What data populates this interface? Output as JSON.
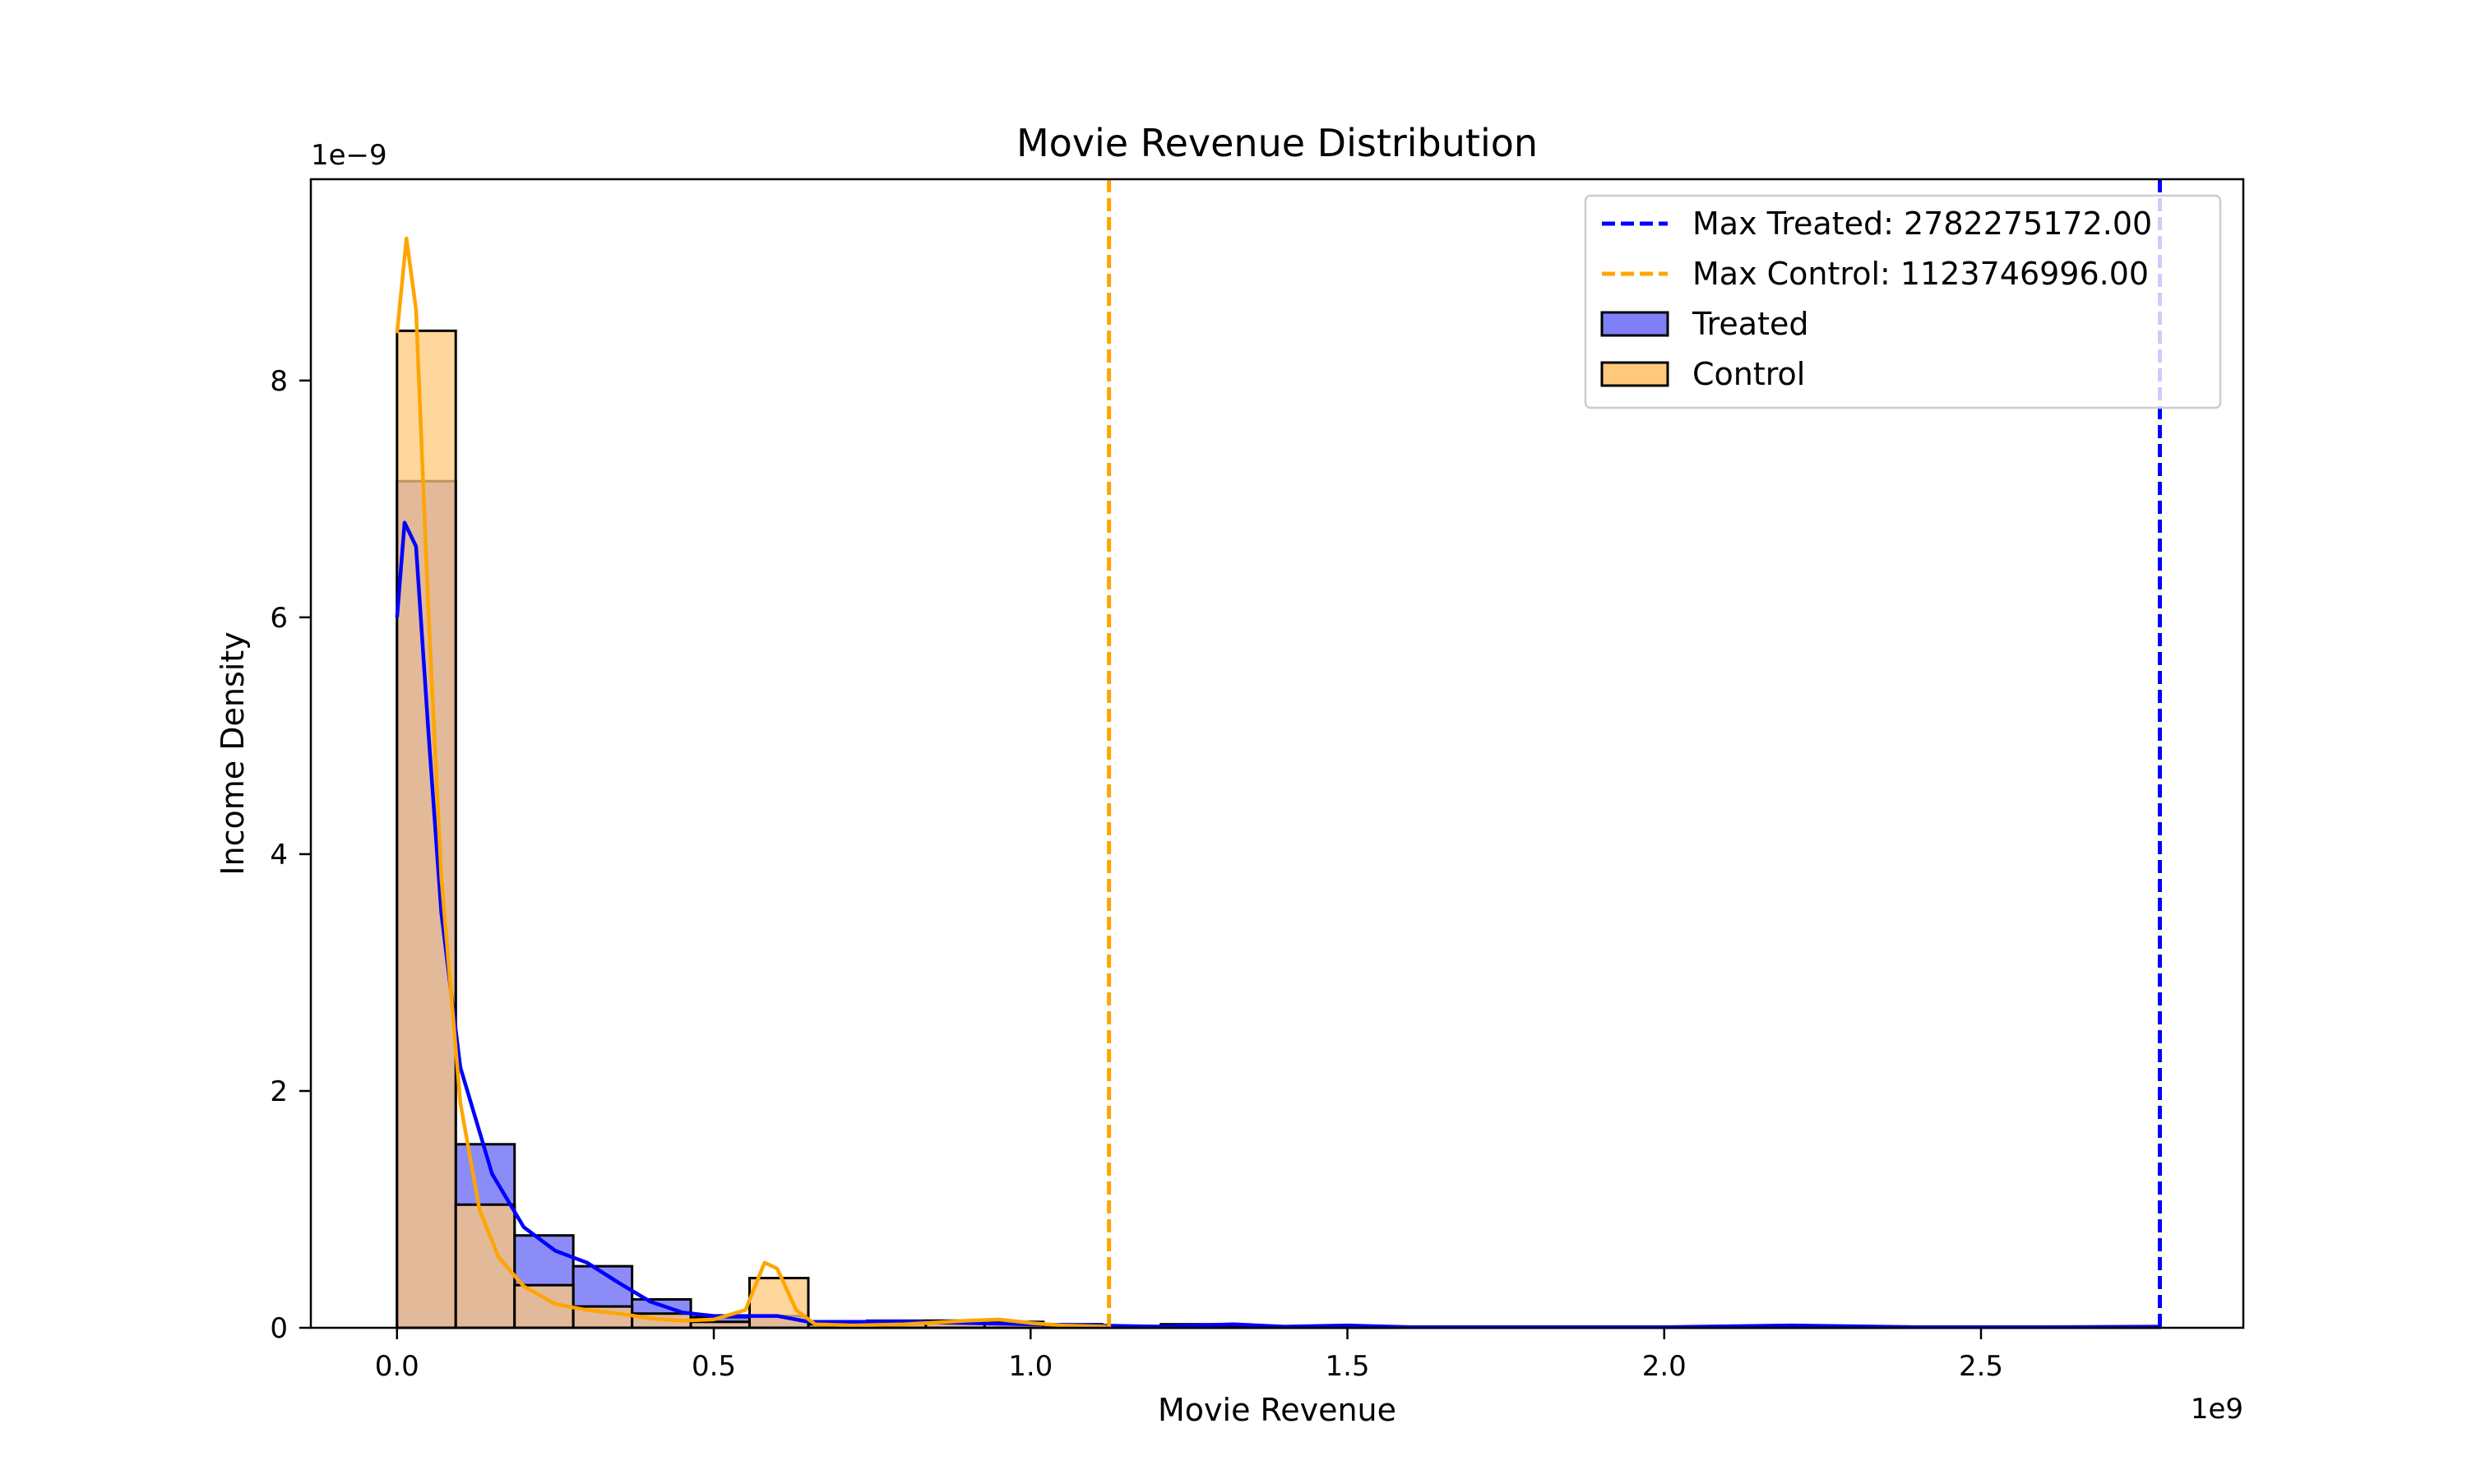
{
  "chart_data": {
    "type": "histogram",
    "title": "Movie Revenue Distribution",
    "xlabel": "Movie Revenue",
    "ylabel": "Income Density",
    "x_offset_label": "1e9",
    "y_offset_label": "1e−9",
    "xlim": [
      -0.136,
      2.914
    ],
    "ylim": [
      0,
      9.7
    ],
    "x_ticks": [
      0.0,
      0.5,
      1.0,
      1.5,
      2.0,
      2.5
    ],
    "x_tick_labels": [
      "0.0",
      "0.5",
      "1.0",
      "1.5",
      "2.0",
      "2.5"
    ],
    "y_ticks": [
      0,
      2,
      4,
      6,
      8
    ],
    "y_tick_labels": [
      "0",
      "2",
      "4",
      "6",
      "8"
    ],
    "bin_edges": [
      0.0,
      0.0927,
      0.1855,
      0.2782,
      0.371,
      0.4637,
      0.5564,
      0.6492,
      0.7419,
      0.8346,
      0.9274,
      1.0201,
      1.1129,
      1.2056,
      1.2983,
      1.3911,
      1.4838,
      1.5765,
      1.6693,
      1.762,
      1.8548,
      1.9475,
      2.0402,
      2.133,
      2.2257,
      2.3184,
      2.4112,
      2.5039,
      2.5967,
      2.6894,
      2.7823
    ],
    "series": [
      {
        "name": "Treated",
        "color": "#0000ff",
        "fill_color": "#7f7ff7",
        "values": [
          7.15,
          1.55,
          0.78,
          0.52,
          0.24,
          0.09,
          0.1,
          0.05,
          0.06,
          0.06,
          0.05,
          0.02,
          0.015,
          0.03,
          0.015,
          0.01,
          0.01,
          0.01,
          0.01,
          0.01,
          0.01,
          0.01,
          0.01,
          0.01,
          0.01,
          0.01,
          0.01,
          0.01,
          0.01,
          0.01
        ],
        "kde": [
          [
            0.0,
            6.0
          ],
          [
            0.012,
            6.8
          ],
          [
            0.03,
            6.6
          ],
          [
            0.05,
            5.0
          ],
          [
            0.07,
            3.5
          ],
          [
            0.1,
            2.2
          ],
          [
            0.15,
            1.3
          ],
          [
            0.2,
            0.85
          ],
          [
            0.25,
            0.65
          ],
          [
            0.3,
            0.55
          ],
          [
            0.35,
            0.38
          ],
          [
            0.4,
            0.22
          ],
          [
            0.45,
            0.13
          ],
          [
            0.5,
            0.1
          ],
          [
            0.55,
            0.1
          ],
          [
            0.6,
            0.1
          ],
          [
            0.65,
            0.05
          ],
          [
            0.7,
            0.05
          ],
          [
            0.8,
            0.05
          ],
          [
            0.9,
            0.04
          ],
          [
            1.0,
            0.03
          ],
          [
            1.1,
            0.02
          ],
          [
            1.2,
            0.01
          ],
          [
            1.32,
            0.03
          ],
          [
            1.4,
            0.01
          ],
          [
            1.5,
            0.02
          ],
          [
            1.6,
            0.005
          ],
          [
            1.8,
            0.005
          ],
          [
            2.0,
            0.005
          ],
          [
            2.2,
            0.02
          ],
          [
            2.4,
            0.005
          ],
          [
            2.6,
            0.005
          ],
          [
            2.78,
            0.01
          ]
        ]
      },
      {
        "name": "Control",
        "color": "#ffa500",
        "fill_color": "#ffc87a",
        "values": [
          8.42,
          1.04,
          0.36,
          0.18,
          0.12,
          0.05,
          0.42,
          0.03,
          0.05,
          0.06,
          0.04,
          0.03
        ],
        "kde": [
          [
            0.0,
            8.4
          ],
          [
            0.015,
            9.2
          ],
          [
            0.03,
            8.6
          ],
          [
            0.05,
            6.0
          ],
          [
            0.07,
            3.8
          ],
          [
            0.1,
            1.9
          ],
          [
            0.13,
            1.0
          ],
          [
            0.16,
            0.6
          ],
          [
            0.2,
            0.35
          ],
          [
            0.25,
            0.2
          ],
          [
            0.3,
            0.15
          ],
          [
            0.35,
            0.12
          ],
          [
            0.4,
            0.08
          ],
          [
            0.45,
            0.06
          ],
          [
            0.5,
            0.07
          ],
          [
            0.55,
            0.15
          ],
          [
            0.58,
            0.55
          ],
          [
            0.6,
            0.5
          ],
          [
            0.63,
            0.15
          ],
          [
            0.66,
            0.03
          ],
          [
            0.72,
            0.02
          ],
          [
            0.8,
            0.03
          ],
          [
            0.9,
            0.06
          ],
          [
            0.95,
            0.07
          ],
          [
            1.0,
            0.04
          ],
          [
            1.05,
            0.02
          ],
          [
            1.12,
            0.01
          ]
        ]
      }
    ],
    "reference_lines": [
      {
        "label": "Max Treated: 2782275172.00",
        "x": 2.782275172,
        "color": "#0000ff",
        "style": "dashed"
      },
      {
        "label": "Max Control: 1123746996.00",
        "x": 1.123746996,
        "color": "#ffa500",
        "style": "dashed"
      }
    ],
    "legend_position": "top-right",
    "legend": [
      {
        "label": "Max Treated: 2782275172.00",
        "kind": "line",
        "color": "#0000ff"
      },
      {
        "label": "Max Control: 1123746996.00",
        "kind": "line",
        "color": "#ffa500"
      },
      {
        "label": "Treated",
        "kind": "patch",
        "color": "#7f7ff7"
      },
      {
        "label": "Control",
        "kind": "patch",
        "color": "#ffc87a"
      }
    ],
    "grid": false
  }
}
